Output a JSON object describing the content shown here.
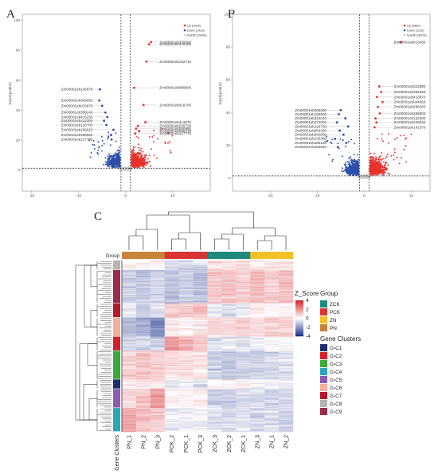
{
  "chart_data": [
    {
      "panel": "A",
      "type": "scatter",
      "ylabel": "-log10(pvalue)",
      "xticks": [
        -20,
        -10,
        0,
        10
      ],
      "yticks": [
        0,
        20,
        40,
        60,
        80,
        100
      ],
      "xlim": [
        -22,
        18
      ],
      "ylim": [
        -14,
        104
      ],
      "thresholds": {
        "x": [
          -1,
          1
        ],
        "y": 1.3
      },
      "legend": {
        "position": "top-right",
        "entries": [
          "Up (1058)",
          "Down (1426)",
          "NoDiff (29409)"
        ]
      },
      "colors": {
        "up": "#e8322c",
        "down": "#2c4fa8",
        "nodiff": "#c8c8c8"
      },
      "labeled_points": [
        {
          "name": "Zm00001eb339090",
          "x": 5.4,
          "y": 85.5
        },
        {
          "name": "Zm00001eb316290",
          "x": 5.0,
          "y": 84.0
        },
        {
          "name": "Zm00001eb182710",
          "x": 4.4,
          "y": 72.5
        },
        {
          "name": "Zm00001eb089800",
          "x": 1.8,
          "y": 55.0
        },
        {
          "name": "Zm00001eb018700",
          "x": 3.8,
          "y": 43.5
        },
        {
          "name": "Zm00001eb413870",
          "x": 4.2,
          "y": 32.0
        },
        {
          "name": "Zm00001eb239720",
          "x": 2.6,
          "y": 29.5
        },
        {
          "name": "Zm00001eb050950",
          "x": 2.2,
          "y": 27.8
        },
        {
          "name": "Zm00001eb069470",
          "x": 2.8,
          "y": 26.2
        },
        {
          "name": "Zm00001eb127770",
          "x": 2.0,
          "y": 24.5
        },
        {
          "name": "Zm00001eb145670",
          "x": -5.5,
          "y": 54.0
        },
        {
          "name": "Zm00001eb349050",
          "x": -5.6,
          "y": 46.5
        },
        {
          "name": "Zm00001eb033870",
          "x": -5.0,
          "y": 43.0
        },
        {
          "name": "Zm00001eb359240",
          "x": -4.3,
          "y": 38.5
        },
        {
          "name": "Zm00001eb415250",
          "x": -3.9,
          "y": 35.5
        },
        {
          "name": "Zm00001eb312300",
          "x": -4.6,
          "y": 33.0
        },
        {
          "name": "Zm00001eb128760",
          "x": -4.1,
          "y": 30.2
        },
        {
          "name": "Zm00001eb169010",
          "x": -2.6,
          "y": 27.0
        },
        {
          "name": "Zm00001eb365050",
          "x": -3.1,
          "y": 23.5
        },
        {
          "name": "Zm00001eb127760",
          "x": -3.0,
          "y": 20.5
        }
      ]
    },
    {
      "panel": "B",
      "type": "scatter",
      "ylabel": "-log10(pvalue)",
      "xticks": [
        -20,
        -10,
        0,
        10
      ],
      "yticks": [
        0,
        20,
        40,
        60,
        80,
        100
      ],
      "xlim": [
        -28,
        14
      ],
      "ylim": [
        -8,
        100
      ],
      "thresholds": {
        "x": [
          -1,
          1
        ],
        "y": 1.3
      },
      "legend": {
        "position": "top-right",
        "entries": [
          "Up (2860)",
          "Down (1139)",
          "NoDiff (28476)"
        ]
      },
      "colors": {
        "up": "#e8322c",
        "down": "#2c4fa8",
        "nodiff": "#c8c8c8"
      },
      "labeled_points": [
        {
          "name": "Zm00001eb013430",
          "x": 7.8,
          "y": 83.0
        },
        {
          "name": "Zm00001eb322880",
          "x": 3.2,
          "y": 56.0
        },
        {
          "name": "Zm00001eb394050",
          "x": 3.6,
          "y": 52.5
        },
        {
          "name": "Zm00001eb415870",
          "x": 2.7,
          "y": 49.5
        },
        {
          "name": "Zm00001eb044660",
          "x": 3.9,
          "y": 46.5
        },
        {
          "name": "Zm00001eb256260",
          "x": 2.9,
          "y": 43.5
        },
        {
          "name": "Zm00001eb358900",
          "x": 3.3,
          "y": 39.5
        },
        {
          "name": "Zm00001eb132400",
          "x": 2.4,
          "y": 36.5
        },
        {
          "name": "Zm00001eb248540",
          "x": 2.6,
          "y": 34.0
        },
        {
          "name": "Zm00001eb142370",
          "x": 2.2,
          "y": 31.0
        },
        {
          "name": "Zm00001eb068290",
          "x": -5.0,
          "y": 41.5
        },
        {
          "name": "Zm00001eb165800",
          "x": -5.4,
          "y": 39.0
        },
        {
          "name": "Zm00001eb314010",
          "x": -4.0,
          "y": 36.5
        },
        {
          "name": "Zm00001eb271820",
          "x": -5.8,
          "y": 34.0
        },
        {
          "name": "Zm00001eb126730",
          "x": -3.4,
          "y": 31.5
        },
        {
          "name": "Zm00001eb054430",
          "x": -5.2,
          "y": 29.0
        },
        {
          "name": "Zm00001eb042830",
          "x": -4.4,
          "y": 26.5
        },
        {
          "name": "Zm00001eb125380",
          "x": -6.2,
          "y": 24.0
        },
        {
          "name": "Zm00001eb286150",
          "x": -3.8,
          "y": 21.5
        },
        {
          "name": "Zm00001eb262840",
          "x": -5.6,
          "y": 19.0
        }
      ]
    },
    {
      "panel": "C",
      "type": "heatmap",
      "columns": [
        "PN_1",
        "PN_2",
        "PN_3",
        "PCK_2",
        "PCK_1",
        "PCK_3",
        "ZCK_3",
        "ZCK_2",
        "ZCK_1",
        "ZN_3",
        "ZN_1",
        "ZN_2"
      ],
      "group_label": "Group",
      "row_annotation_label": "Gene Clusters",
      "groups": [
        "PN",
        "PN",
        "PN",
        "PCK",
        "PCK",
        "PCK",
        "ZCK",
        "ZCK",
        "ZCK",
        "ZN",
        "ZN",
        "ZN"
      ],
      "group_legend": [
        {
          "name": "ZCK",
          "color": "#1e8a7e"
        },
        {
          "name": "PCK",
          "color": "#d93434"
        },
        {
          "name": "ZN",
          "color": "#f2c128"
        },
        {
          "name": "PN",
          "color": "#c8843a"
        }
      ],
      "scale_title": "Z_Score",
      "scale_group_title": "Group",
      "scale_ticks": [
        4,
        2,
        0,
        -2,
        -4
      ],
      "cluster_legend_title": "Gene Clusters",
      "clusters": [
        {
          "name": "G-C1",
          "color": "#1c2e6e"
        },
        {
          "name": "G-C2",
          "color": "#d81f26"
        },
        {
          "name": "G-C3",
          "color": "#3aaa3a"
        },
        {
          "name": "G-C4",
          "color": "#2ba6b8"
        },
        {
          "name": "G-C5",
          "color": "#8a5bb0"
        },
        {
          "name": "G-C6",
          "color": "#f4b19a"
        },
        {
          "name": "G-C7",
          "color": "#b5192a"
        },
        {
          "name": "G-C8",
          "color": "#b4b4b4"
        },
        {
          "name": "G-C9",
          "color": "#9c2b4b"
        }
      ],
      "row_blocks": [
        {
          "cluster": "G-C8",
          "rows": 2,
          "pattern": [
            0.2,
            0.3,
            0.2,
            -0.8,
            -0.9,
            -0.7,
            0.6,
            0.5,
            0.6,
            0.4,
            0.5,
            0.5
          ]
        },
        {
          "cluster": "G-C9",
          "rows": 7,
          "pattern": [
            -0.9,
            -1.0,
            -0.8,
            -1.1,
            -1.0,
            -1.2,
            1.0,
            1.1,
            0.9,
            1.2,
            1.0,
            1.1
          ]
        },
        {
          "cluster": "G-C7",
          "rows": 3,
          "pattern": [
            -0.6,
            -0.8,
            -0.5,
            1.1,
            1.0,
            1.2,
            -0.4,
            -0.5,
            -0.3,
            0.2,
            0.1,
            0.3
          ]
        },
        {
          "cluster": "G-C6",
          "rows": 4,
          "pattern": [
            -1.4,
            -1.6,
            -2.2,
            0.5,
            0.2,
            0.4,
            0.8,
            0.6,
            0.9,
            0.7,
            0.9,
            0.8
          ]
        },
        {
          "cluster": "G-C2",
          "rows": 3,
          "pattern": [
            -0.7,
            -0.8,
            -0.9,
            1.9,
            1.4,
            1.1,
            -0.5,
            -0.3,
            -0.4,
            -0.1,
            0.0,
            0.1
          ]
        },
        {
          "cluster": "G-C3",
          "rows": 6,
          "pattern": [
            0.9,
            1.0,
            0.8,
            0.5,
            0.6,
            0.4,
            -1.0,
            -1.1,
            -0.9,
            -0.7,
            -0.8,
            -0.6
          ]
        },
        {
          "cluster": "G-C1",
          "rows": 2,
          "pattern": [
            0.5,
            0.4,
            0.5,
            -0.5,
            -0.4,
            -0.6,
            0.2,
            0.1,
            0.2,
            -0.2,
            -0.1,
            -0.2
          ]
        },
        {
          "cluster": "G-C5",
          "rows": 4,
          "pattern": [
            0.7,
            1.1,
            1.8,
            0.2,
            0.1,
            0.3,
            -0.9,
            -1.0,
            -0.8,
            -0.6,
            -0.8,
            -0.7
          ]
        },
        {
          "cluster": "G-C4",
          "rows": 5,
          "pattern": [
            1.6,
            1.2,
            1.0,
            -0.3,
            -0.4,
            -0.2,
            -0.6,
            -0.7,
            -0.5,
            -0.8,
            -0.6,
            -0.9
          ]
        }
      ]
    }
  ]
}
